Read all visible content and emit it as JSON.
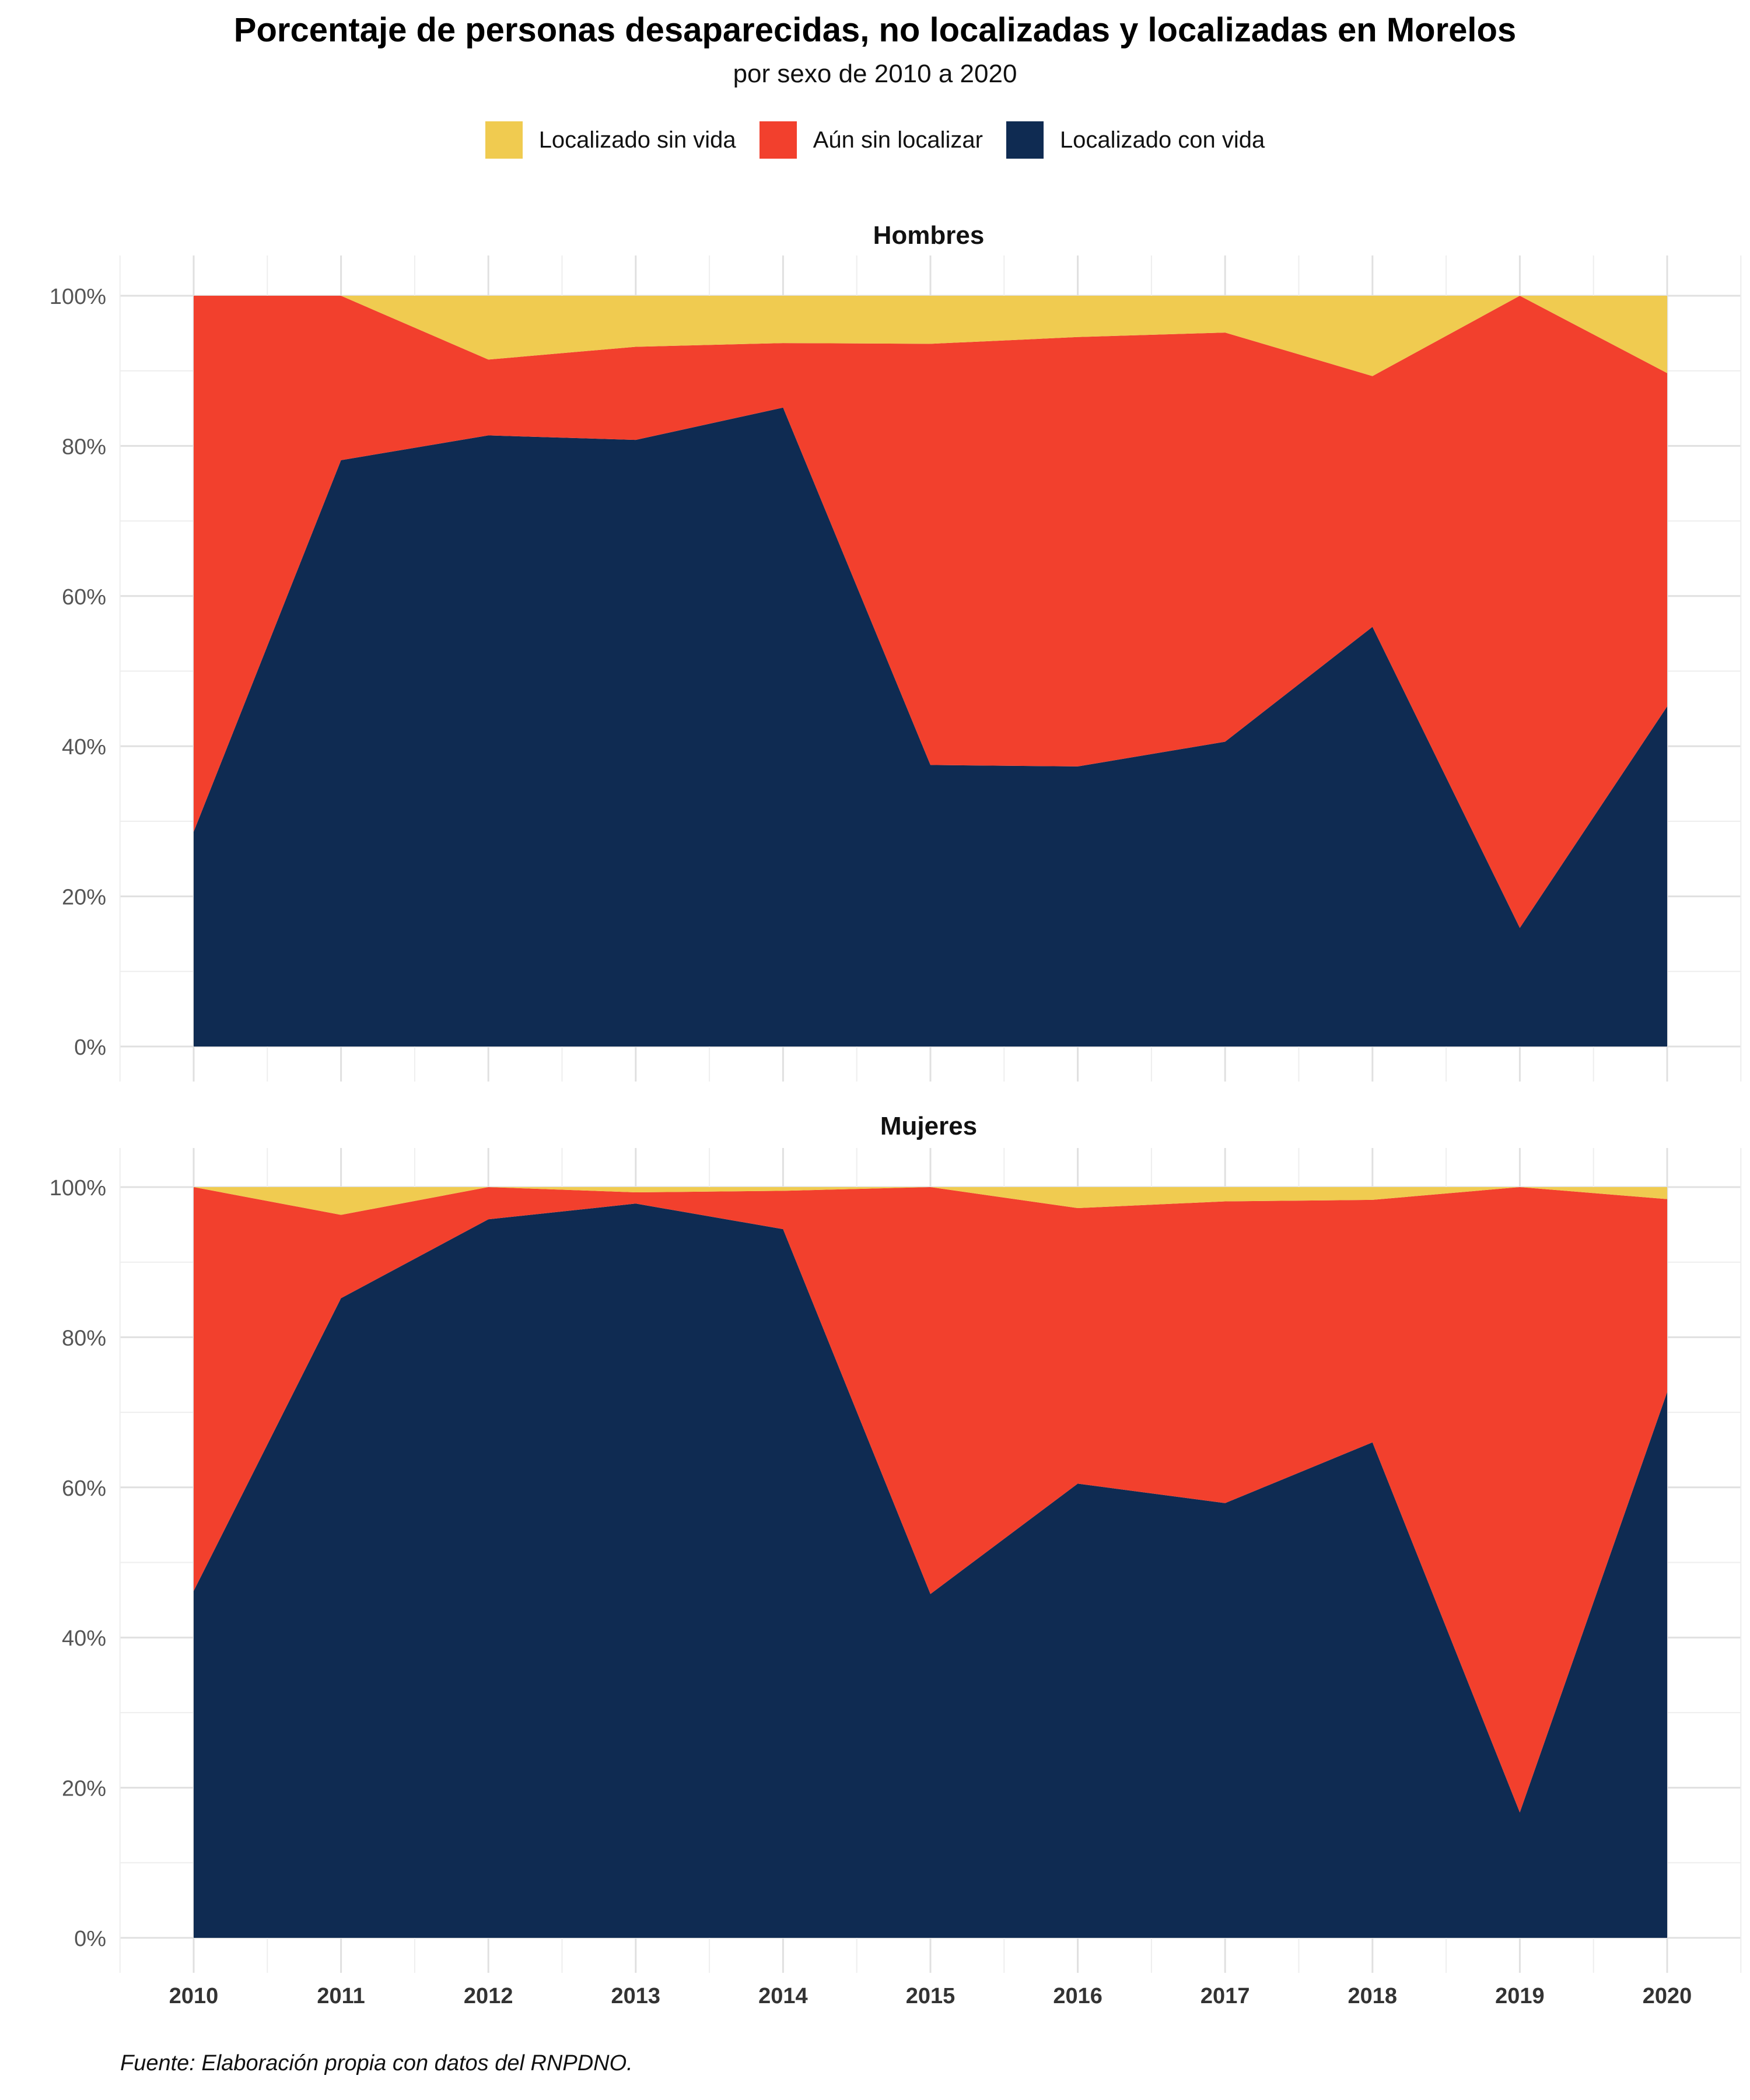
{
  "title": "Porcentaje de personas desaparecidas, no localizadas y localizadas en Morelos",
  "subtitle": "por sexo de 2010 a 2020",
  "source": "Fuente: Elaboración propia con datos del RNPDNO.",
  "legend": [
    {
      "label": "Localizado sin vida",
      "color": "#F0CB50"
    },
    {
      "label": "Aún sin localizar",
      "color": "#F2402D"
    },
    {
      "label": "Localizado con vida",
      "color": "#0F2B52"
    }
  ],
  "chart_data": [
    {
      "type": "area",
      "stacked": true,
      "facet": "Hombres",
      "x": [
        2010,
        2011,
        2012,
        2013,
        2014,
        2015,
        2016,
        2017,
        2018,
        2019,
        2020
      ],
      "ylim": [
        0,
        100
      ],
      "yticks": [
        "0%",
        "20%",
        "40%",
        "60%",
        "80%",
        "100%"
      ],
      "series": [
        {
          "name": "Localizado con vida",
          "color": "#0F2B52",
          "values": [
            28.6,
            78.1,
            81.4,
            80.8,
            85.1,
            37.5,
            37.3,
            40.6,
            55.9,
            15.8,
            45.3
          ]
        },
        {
          "name": "Aún sin localizar",
          "color": "#F2402D",
          "values": [
            71.4,
            21.9,
            10.1,
            12.4,
            8.6,
            56.1,
            57.2,
            54.5,
            33.4,
            84.2,
            44.4
          ]
        },
        {
          "name": "Localizado sin vida",
          "color": "#F0CB50",
          "values": [
            0.0,
            0.0,
            8.5,
            6.8,
            6.3,
            6.4,
            5.5,
            4.9,
            10.7,
            0.0,
            10.3
          ]
        }
      ]
    },
    {
      "type": "area",
      "stacked": true,
      "facet": "Mujeres",
      "x": [
        2010,
        2011,
        2012,
        2013,
        2014,
        2015,
        2016,
        2017,
        2018,
        2019,
        2020
      ],
      "ylim": [
        0,
        100
      ],
      "yticks": [
        "0%",
        "20%",
        "40%",
        "60%",
        "80%",
        "100%"
      ],
      "series": [
        {
          "name": "Localizado con vida",
          "color": "#0F2B52",
          "values": [
            46.2,
            85.2,
            95.7,
            97.8,
            94.4,
            45.8,
            60.5,
            57.9,
            66.0,
            16.7,
            72.7
          ]
        },
        {
          "name": "Aún sin localizar",
          "color": "#F2402D",
          "values": [
            53.8,
            11.1,
            4.3,
            1.5,
            5.1,
            54.2,
            36.7,
            40.2,
            32.3,
            83.3,
            25.7
          ]
        },
        {
          "name": "Localizado sin vida",
          "color": "#F0CB50",
          "values": [
            0.0,
            3.7,
            0.0,
            0.7,
            0.5,
            0.0,
            2.8,
            1.9,
            1.7,
            0.0,
            1.6
          ]
        }
      ]
    }
  ]
}
